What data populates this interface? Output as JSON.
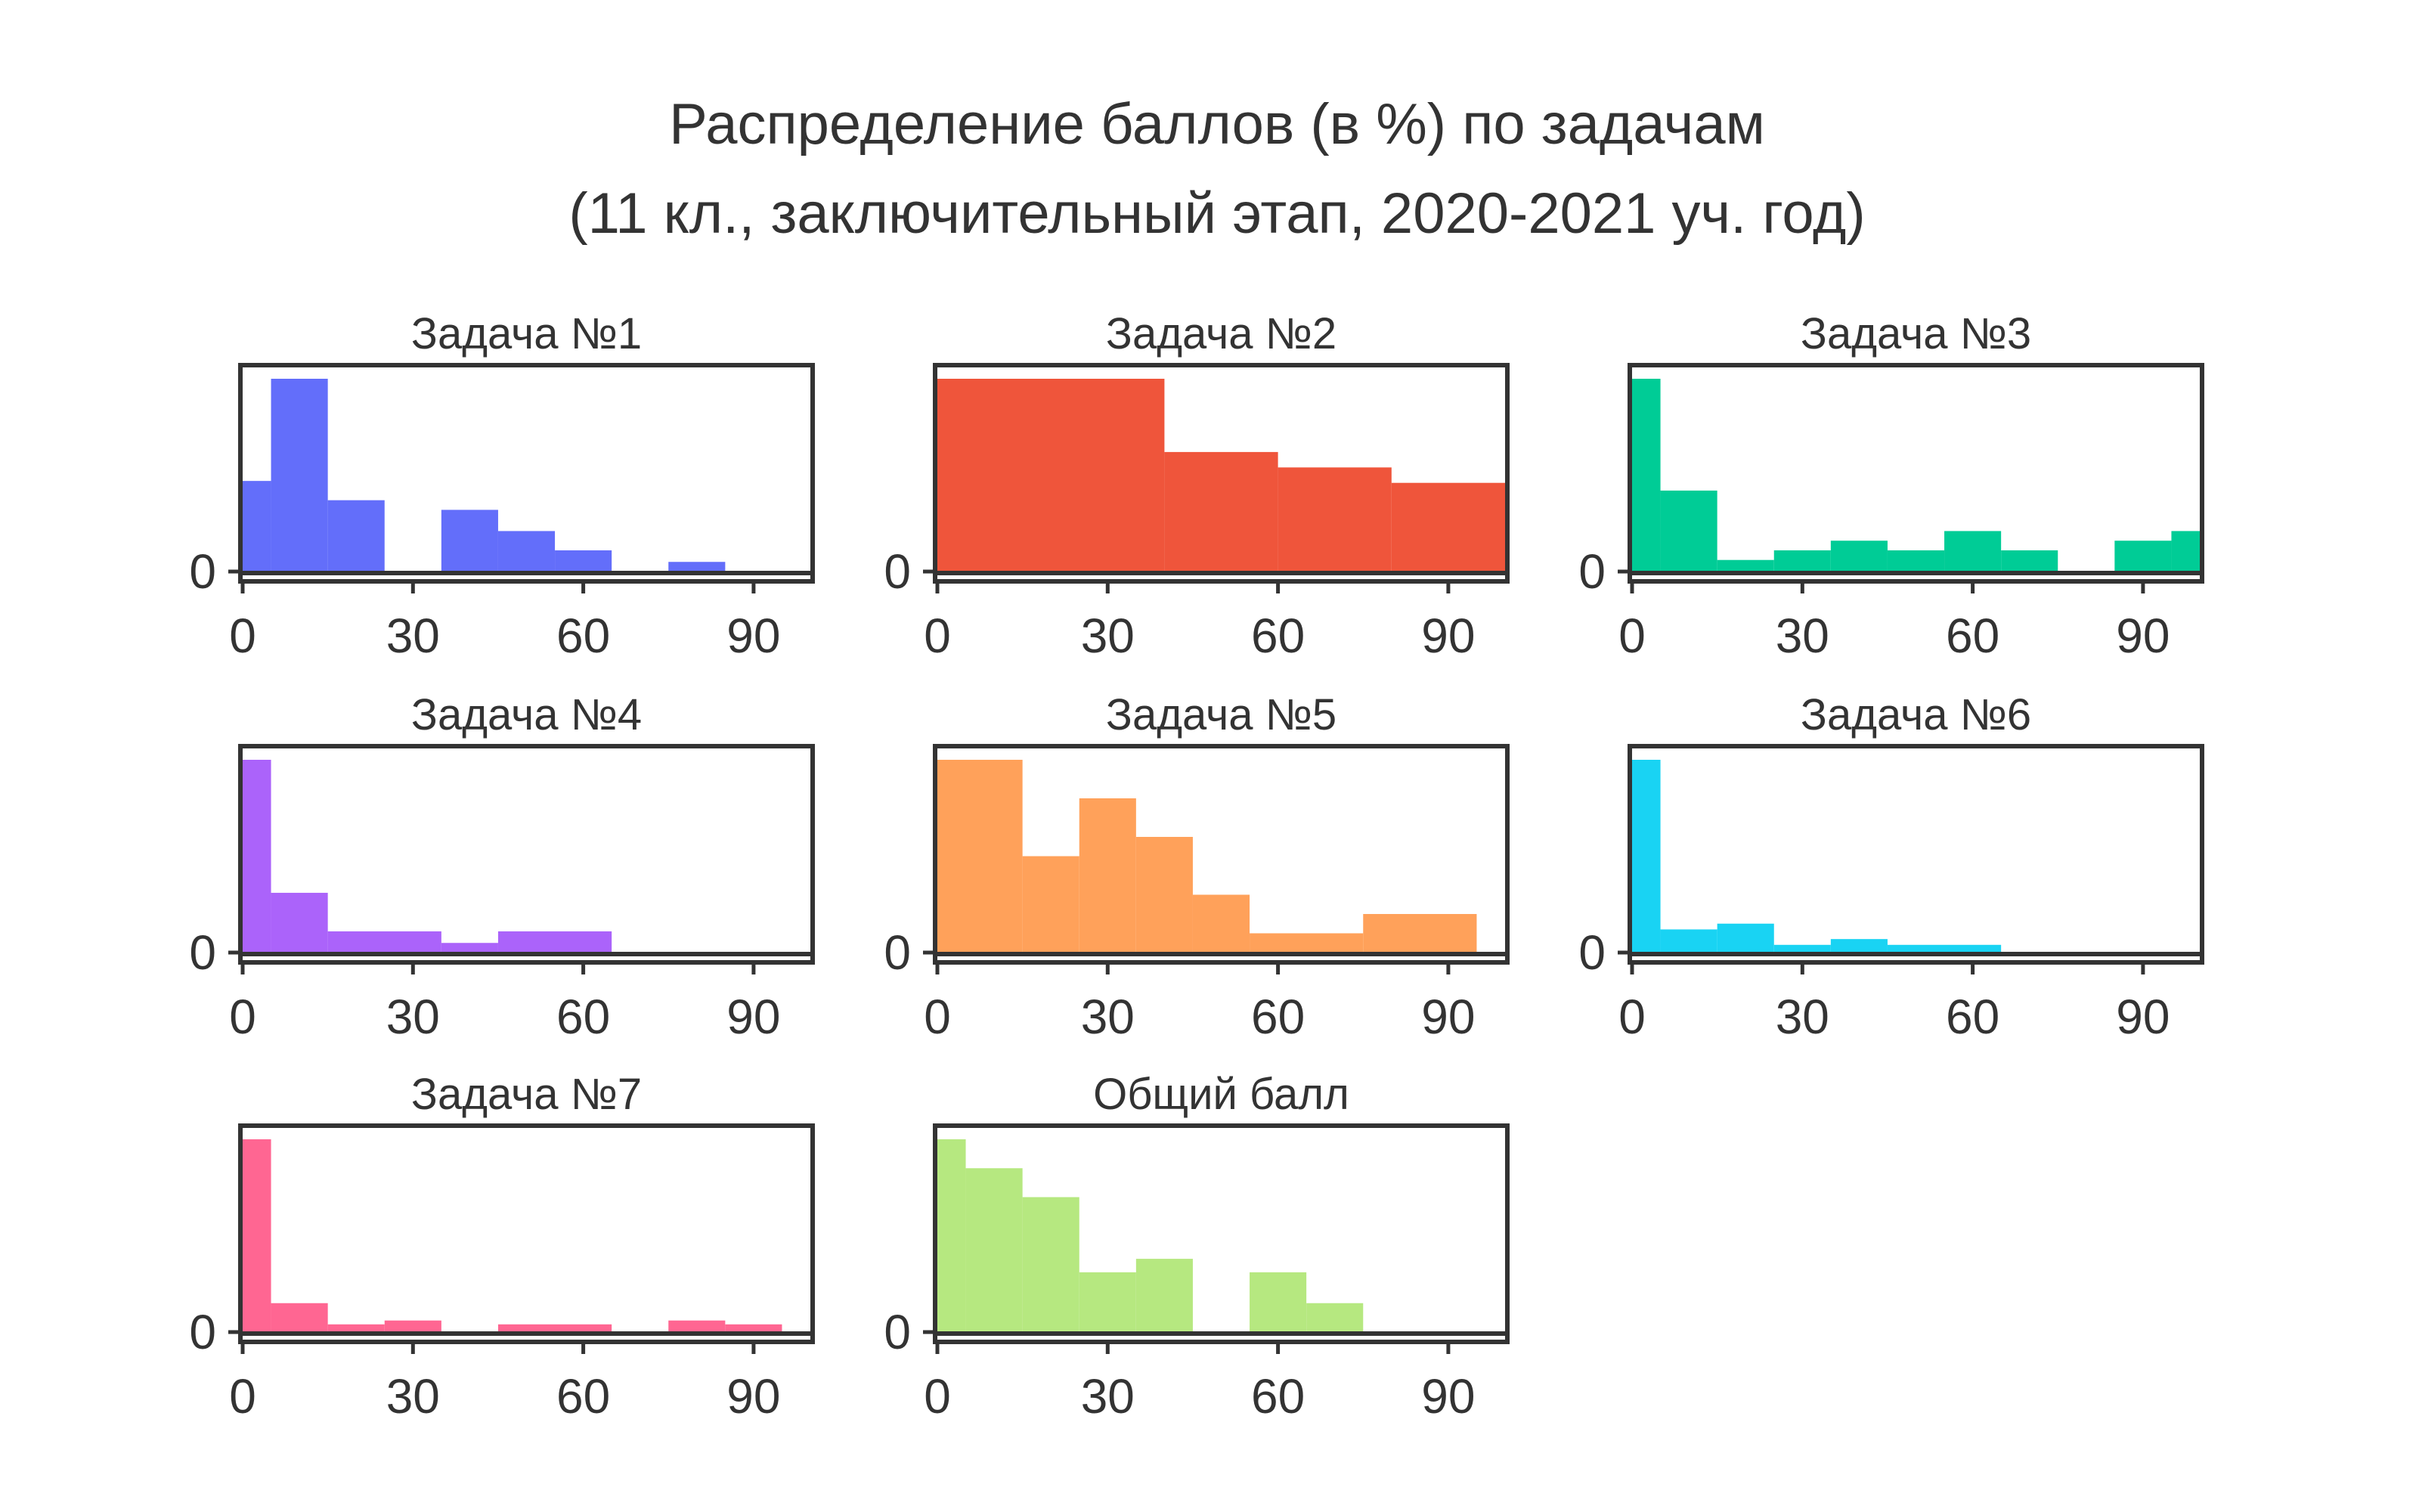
{
  "figure": {
    "title_line1": "Распределение баллов (в %) по задачам",
    "title_line2": "(11 кл., заключительный этап, 2020-2021 уч. год)"
  },
  "chart_data": [
    {
      "type": "bar",
      "title": "Задача №1",
      "color": "#636EFA",
      "bins": [
        [
          0,
          5
        ],
        [
          5,
          15
        ],
        [
          15,
          25
        ],
        [
          35,
          45
        ],
        [
          45,
          55
        ],
        [
          55,
          65
        ],
        [
          75,
          85
        ]
      ],
      "values": [
        0.47,
        1.0,
        0.37,
        0.32,
        0.21,
        0.11,
        0.05
      ],
      "xlim": [
        0,
        100
      ],
      "xticks": [
        0,
        30,
        60,
        90
      ],
      "yticks": [
        0
      ]
    },
    {
      "type": "bar",
      "title": "Задача №2",
      "color": "#EF553B",
      "bins": [
        [
          0,
          40
        ],
        [
          40,
          60
        ],
        [
          60,
          80
        ],
        [
          80,
          100
        ]
      ],
      "values": [
        1.0,
        0.62,
        0.54,
        0.46
      ],
      "xlim": [
        0,
        100
      ],
      "xticks": [
        0,
        30,
        60,
        90
      ],
      "yticks": [
        0
      ]
    },
    {
      "type": "bar",
      "title": "Задача №3",
      "color": "#00CC96",
      "bins": [
        [
          0,
          5
        ],
        [
          5,
          15
        ],
        [
          15,
          25
        ],
        [
          25,
          35
        ],
        [
          35,
          45
        ],
        [
          45,
          55
        ],
        [
          55,
          65
        ],
        [
          65,
          75
        ],
        [
          85,
          95
        ],
        [
          95,
          100
        ]
      ],
      "values": [
        1.0,
        0.42,
        0.06,
        0.11,
        0.16,
        0.11,
        0.21,
        0.11,
        0.16,
        0.21
      ],
      "xlim": [
        0,
        100
      ],
      "xticks": [
        0,
        30,
        60,
        90
      ],
      "yticks": [
        0
      ]
    },
    {
      "type": "bar",
      "title": "Задача №4",
      "color": "#AB63FA",
      "bins": [
        [
          0,
          5
        ],
        [
          5,
          15
        ],
        [
          15,
          35
        ],
        [
          35,
          45
        ],
        [
          45,
          65
        ]
      ],
      "values": [
        1.0,
        0.31,
        0.11,
        0.05,
        0.11
      ],
      "xlim": [
        0,
        100
      ],
      "xticks": [
        0,
        30,
        60,
        90
      ],
      "yticks": [
        0
      ]
    },
    {
      "type": "bar",
      "title": "Задача №5",
      "color": "#FFA15A",
      "bins": [
        [
          0,
          15
        ],
        [
          15,
          25
        ],
        [
          25,
          35
        ],
        [
          35,
          45
        ],
        [
          45,
          55
        ],
        [
          55,
          75
        ],
        [
          75,
          95
        ]
      ],
      "values": [
        1.0,
        0.5,
        0.8,
        0.6,
        0.3,
        0.1,
        0.2
      ],
      "xlim": [
        0,
        100
      ],
      "xticks": [
        0,
        30,
        60,
        90
      ],
      "yticks": [
        0
      ]
    },
    {
      "type": "bar",
      "title": "Задача №6",
      "color": "#19D3F3",
      "bins": [
        [
          0,
          5
        ],
        [
          5,
          15
        ],
        [
          15,
          25
        ],
        [
          25,
          35
        ],
        [
          35,
          45
        ],
        [
          45,
          65
        ]
      ],
      "values": [
        1.0,
        0.12,
        0.15,
        0.04,
        0.07,
        0.04
      ],
      "xlim": [
        0,
        100
      ],
      "xticks": [
        0,
        30,
        60,
        90
      ],
      "yticks": [
        0
      ]
    },
    {
      "type": "bar",
      "title": "Задача №7",
      "color": "#FF6692",
      "bins": [
        [
          0,
          5
        ],
        [
          5,
          15
        ],
        [
          15,
          25
        ],
        [
          25,
          35
        ],
        [
          45,
          65
        ],
        [
          75,
          85
        ],
        [
          85,
          95
        ]
      ],
      "values": [
        1.0,
        0.15,
        0.04,
        0.06,
        0.04,
        0.06,
        0.04
      ],
      "xlim": [
        0,
        100
      ],
      "xticks": [
        0,
        30,
        60,
        90
      ],
      "yticks": [
        0
      ]
    },
    {
      "type": "bar",
      "title": "Общий балл",
      "color": "#B6E880",
      "bins": [
        [
          0,
          5
        ],
        [
          5,
          15
        ],
        [
          15,
          25
        ],
        [
          25,
          35
        ],
        [
          35,
          45
        ],
        [
          55,
          65
        ],
        [
          65,
          75
        ]
      ],
      "values": [
        1.0,
        0.85,
        0.7,
        0.31,
        0.38,
        0.31,
        0.15
      ],
      "xlim": [
        0,
        100
      ],
      "xticks": [
        0,
        30,
        60,
        90
      ],
      "yticks": [
        0
      ]
    }
  ]
}
